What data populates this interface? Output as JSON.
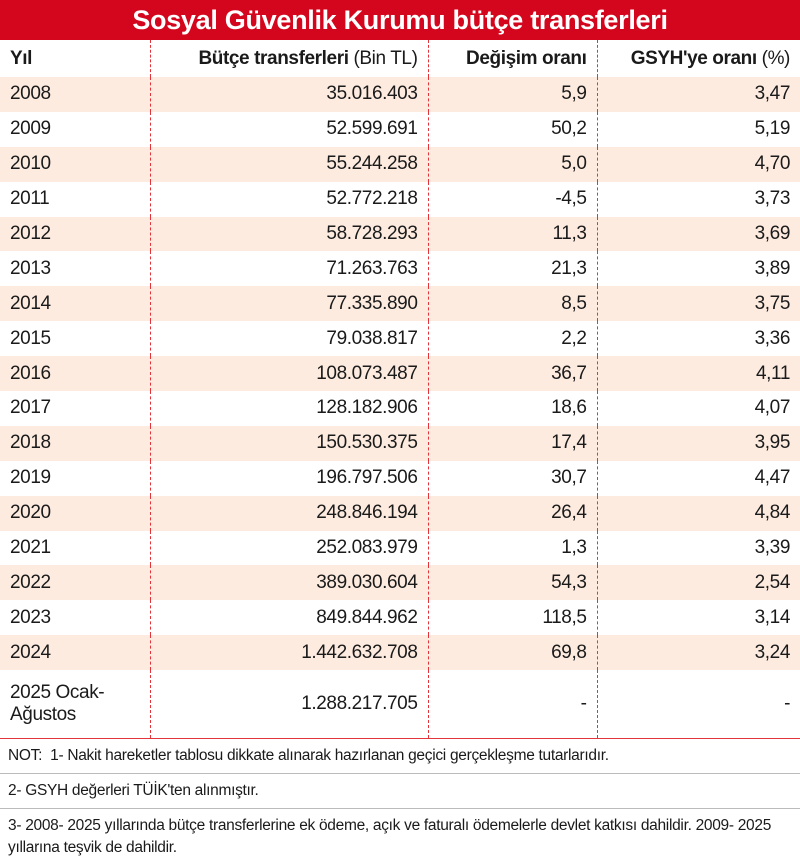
{
  "title": "Sosyal Güvenlik Kurumu bütçe transferleri",
  "columns": [
    {
      "label": "Yıl"
    },
    {
      "label": "Bütçe transferleri",
      "unit": "(Bin TL)"
    },
    {
      "label": "Değişim oranı"
    },
    {
      "label": "GSYH'ye oranı",
      "unit": "(%)"
    }
  ],
  "rows": [
    [
      "2008",
      "35.016.403",
      "5,9",
      "3,47"
    ],
    [
      "2009",
      "52.599.691",
      "50,2",
      "5,19"
    ],
    [
      "2010",
      "55.244.258",
      "5,0",
      "4,70"
    ],
    [
      "2011",
      "52.772.218",
      "-4,5",
      "3,73"
    ],
    [
      "2012",
      "58.728.293",
      "11,3",
      "3,69"
    ],
    [
      "2013",
      "71.263.763",
      "21,3",
      "3,89"
    ],
    [
      "2014",
      "77.335.890",
      "8,5",
      "3,75"
    ],
    [
      "2015",
      "79.038.817",
      "2,2",
      "3,36"
    ],
    [
      "2016",
      "108.073.487",
      "36,7",
      "4,11"
    ],
    [
      "2017",
      "128.182.906",
      "18,6",
      "4,07"
    ],
    [
      "2018",
      "150.530.375",
      "17,4",
      "3,95"
    ],
    [
      "2019",
      "196.797.506",
      "30,7",
      "4,47"
    ],
    [
      "2020",
      "248.846.194",
      "26,4",
      "4,84"
    ],
    [
      "2021",
      "252.083.979",
      "1,3",
      "3,39"
    ],
    [
      "2022",
      "389.030.604",
      "54,3",
      "2,54"
    ],
    [
      "2023",
      "849.844.962",
      "118,5",
      "3,14"
    ],
    [
      "2024",
      "1.442.632.708",
      "69,8",
      "3,24"
    ],
    [
      "2025 Ocak-Ağustos",
      "1.288.217.705",
      "-",
      "-"
    ]
  ],
  "notes_label": "NOT:",
  "notes": [
    "1- Nakit hareketler tablosu dikkate alınarak hazırlanan geçici gerçekleşme tutarlarıdır.",
    "2- GSYH değerleri TÜİK'ten alınmıştır.",
    "3- 2008- 2025 yıllarında bütçe transferlerine ek ödeme, açık ve faturalı ödemelerle devlet katkısı dahildir. 2009- 2025 yıllarına teşvik de dahildir."
  ]
}
